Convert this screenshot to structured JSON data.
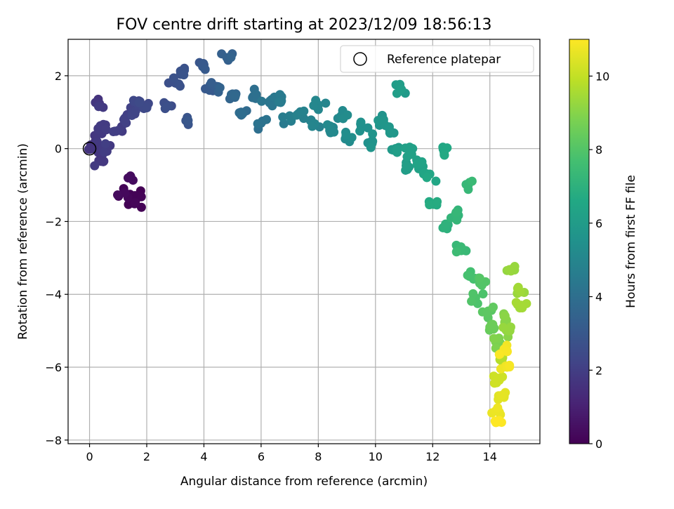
{
  "chart_data": {
    "type": "scatter",
    "title": "FOV centre drift starting at 2023/12/09 18:56:13",
    "xlabel": "Angular distance from reference (arcmin)",
    "ylabel": "Rotation from reference (arcmin)",
    "colorbar_label": "Hours from first FF file",
    "xlim": [
      -0.75,
      15.75
    ],
    "ylim": [
      -8.1,
      3.0
    ],
    "xticks": [
      0,
      2,
      4,
      6,
      8,
      10,
      12,
      14
    ],
    "yticks": [
      -8,
      -6,
      -4,
      -2,
      0,
      2
    ],
    "colorbar_range": [
      0,
      11
    ],
    "colorbar_ticks": [
      0,
      2,
      4,
      6,
      8,
      10
    ],
    "colormap": "viridis",
    "grid": true,
    "legend": {
      "placement": "top-right",
      "entries": [
        "Reference platepar"
      ]
    },
    "reference_point": {
      "x": 0,
      "y": 0
    },
    "anchor_points": [
      {
        "x": 0.05,
        "y": 0.0,
        "h": 1.6
      },
      {
        "x": 0.2,
        "y": 0.2,
        "h": 1.7
      },
      {
        "x": 0.3,
        "y": 0.55,
        "h": 1.8
      },
      {
        "x": 0.3,
        "y": 1.2,
        "h": 1.75
      },
      {
        "x": 0.4,
        "y": -0.35,
        "h": 1.8
      },
      {
        "x": 0.5,
        "y": 0.6,
        "h": 1.9
      },
      {
        "x": 0.6,
        "y": 0.05,
        "h": 1.9
      },
      {
        "x": 1.0,
        "y": 0.5,
        "h": 2.0
      },
      {
        "x": 1.2,
        "y": 0.8,
        "h": 2.1
      },
      {
        "x": 1.5,
        "y": 1.0,
        "h": 2.2
      },
      {
        "x": 1.7,
        "y": 1.2,
        "h": 2.3
      },
      {
        "x": 1.9,
        "y": 1.1,
        "h": 2.4
      },
      {
        "x": 1.4,
        "y": -0.8,
        "h": 0.3
      },
      {
        "x": 1.2,
        "y": -1.2,
        "h": 0.2
      },
      {
        "x": 1.6,
        "y": -1.5,
        "h": 0.1
      },
      {
        "x": 1.7,
        "y": -1.3,
        "h": 0.05
      },
      {
        "x": 2.7,
        "y": 1.2,
        "h": 2.6
      },
      {
        "x": 3.0,
        "y": 1.8,
        "h": 2.7
      },
      {
        "x": 3.2,
        "y": 2.1,
        "h": 2.8
      },
      {
        "x": 3.4,
        "y": 0.75,
        "h": 2.9
      },
      {
        "x": 4.0,
        "y": 2.3,
        "h": 3.0
      },
      {
        "x": 4.2,
        "y": 1.6,
        "h": 3.1
      },
      {
        "x": 4.5,
        "y": 1.7,
        "h": 3.3
      },
      {
        "x": 4.8,
        "y": 2.5,
        "h": 3.4
      },
      {
        "x": 5.0,
        "y": 1.5,
        "h": 3.6
      },
      {
        "x": 5.3,
        "y": 1.0,
        "h": 3.8
      },
      {
        "x": 5.7,
        "y": 1.4,
        "h": 4.0
      },
      {
        "x": 6.0,
        "y": 0.7,
        "h": 4.1
      },
      {
        "x": 6.3,
        "y": 1.3,
        "h": 4.3
      },
      {
        "x": 6.7,
        "y": 1.3,
        "h": 4.5
      },
      {
        "x": 7.0,
        "y": 0.9,
        "h": 4.6
      },
      {
        "x": 7.4,
        "y": 1.0,
        "h": 4.8
      },
      {
        "x": 7.8,
        "y": 0.7,
        "h": 4.9
      },
      {
        "x": 8.0,
        "y": 1.2,
        "h": 5.0
      },
      {
        "x": 8.4,
        "y": 0.5,
        "h": 5.1
      },
      {
        "x": 8.8,
        "y": 0.9,
        "h": 5.2
      },
      {
        "x": 9.1,
        "y": 0.3,
        "h": 5.3
      },
      {
        "x": 9.5,
        "y": 0.6,
        "h": 5.4
      },
      {
        "x": 9.9,
        "y": 0.2,
        "h": 5.6
      },
      {
        "x": 10.2,
        "y": 0.7,
        "h": 5.7
      },
      {
        "x": 10.5,
        "y": 0.5,
        "h": 5.8
      },
      {
        "x": 10.7,
        "y": 0.0,
        "h": 6.0
      },
      {
        "x": 10.9,
        "y": 1.6,
        "h": 6.0
      },
      {
        "x": 11.1,
        "y": -0.5,
        "h": 6.1
      },
      {
        "x": 11.3,
        "y": 0.0,
        "h": 6.2
      },
      {
        "x": 11.6,
        "y": -0.4,
        "h": 6.3
      },
      {
        "x": 11.9,
        "y": -0.7,
        "h": 6.5
      },
      {
        "x": 12.1,
        "y": -1.5,
        "h": 6.7
      },
      {
        "x": 12.4,
        "y": -0.1,
        "h": 6.6
      },
      {
        "x": 12.5,
        "y": -2.2,
        "h": 7.0
      },
      {
        "x": 12.8,
        "y": -1.8,
        "h": 7.2
      },
      {
        "x": 13.0,
        "y": -2.8,
        "h": 7.4
      },
      {
        "x": 13.2,
        "y": -1.0,
        "h": 7.3
      },
      {
        "x": 13.3,
        "y": -3.5,
        "h": 7.7
      },
      {
        "x": 13.5,
        "y": -4.1,
        "h": 7.9
      },
      {
        "x": 13.7,
        "y": -3.7,
        "h": 8.0
      },
      {
        "x": 13.9,
        "y": -4.5,
        "h": 8.2
      },
      {
        "x": 14.0,
        "y": -4.9,
        "h": 8.5
      },
      {
        "x": 14.2,
        "y": -5.3,
        "h": 8.8
      },
      {
        "x": 14.5,
        "y": -4.6,
        "h": 9.0
      },
      {
        "x": 14.7,
        "y": -5.0,
        "h": 9.2
      },
      {
        "x": 14.8,
        "y": -3.3,
        "h": 9.3
      },
      {
        "x": 15.0,
        "y": -3.9,
        "h": 9.4
      },
      {
        "x": 15.1,
        "y": -4.3,
        "h": 9.5
      },
      {
        "x": 14.4,
        "y": -5.7,
        "h": 9.8
      },
      {
        "x": 14.3,
        "y": -6.3,
        "h": 10.2
      },
      {
        "x": 14.5,
        "y": -6.8,
        "h": 10.5
      },
      {
        "x": 14.2,
        "y": -7.2,
        "h": 10.7
      },
      {
        "x": 14.6,
        "y": -6.0,
        "h": 10.8
      },
      {
        "x": 14.5,
        "y": -5.5,
        "h": 10.9
      },
      {
        "x": 14.3,
        "y": -7.5,
        "h": 11.0
      }
    ]
  }
}
